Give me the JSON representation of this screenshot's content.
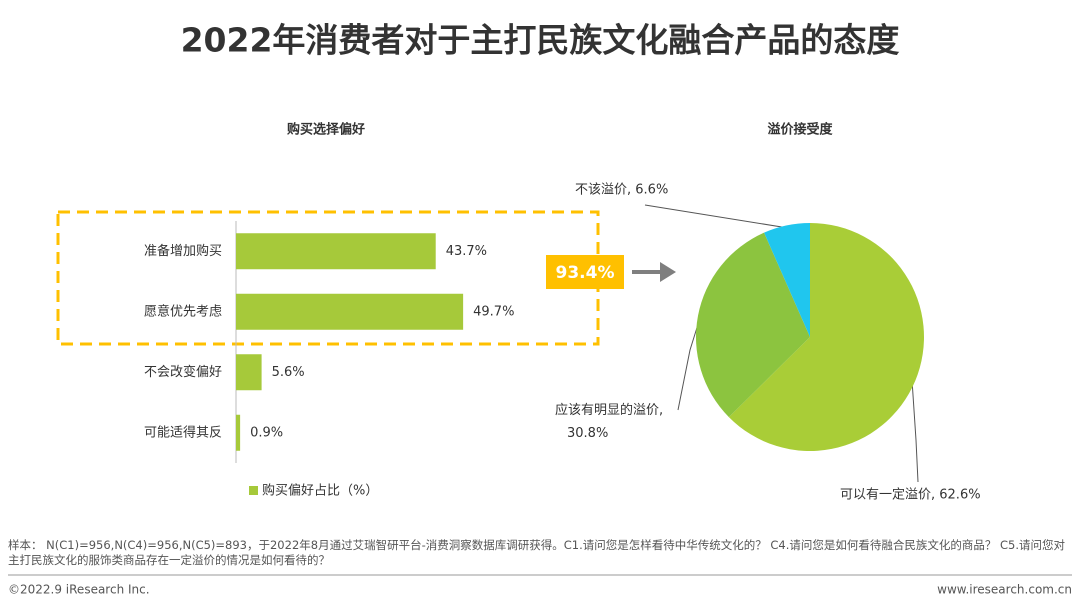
{
  "title": "2022年消费者对于主打民族文化融合产品的态度",
  "callout": "93.4%",
  "note": "样本： N(C1)=956,N(C4)=956,N(C5)=893，于2022年8月通过艾瑞智研平台-消费洞察数据库调研获得。C1.请问您是怎样看待中华传统文化的？ C4.请问您是如何看待融合民族文化的商品？ C5.请问您对主打民族文化的服饰类商品存在一定溢价的情况是如何看待的？",
  "copyright": "©2022.9 iResearch Inc.",
  "url": "www.iresearch.com.cn",
  "chart_data": [
    {
      "type": "hbar",
      "title": "购买选择偏好",
      "categories": [
        "准备增加购买",
        "愿意优先考虑",
        "不会改变偏好",
        "可能适得其反"
      ],
      "series": [
        {
          "name": "购买偏好占比（%）",
          "color": "#a6c93a",
          "values": [
            43.7,
            49.7,
            5.6,
            0.9
          ]
        }
      ],
      "value_labels": [
        "43.7%",
        "49.7%",
        "5.6%",
        "0.9%"
      ],
      "xlim": [
        0,
        100
      ],
      "legend": "bottom"
    },
    {
      "type": "pie",
      "title": "溢价接受度",
      "values": [
        62.6,
        30.8,
        6.6
      ],
      "colors": [
        "#a9cd37",
        "#8cc43f",
        "#20c6ee"
      ],
      "value_labels": [
        "可以有一定溢价, 62.6%",
        "应该有明显的溢价, 30.8%",
        "不该溢价, 6.6%"
      ]
    }
  ]
}
